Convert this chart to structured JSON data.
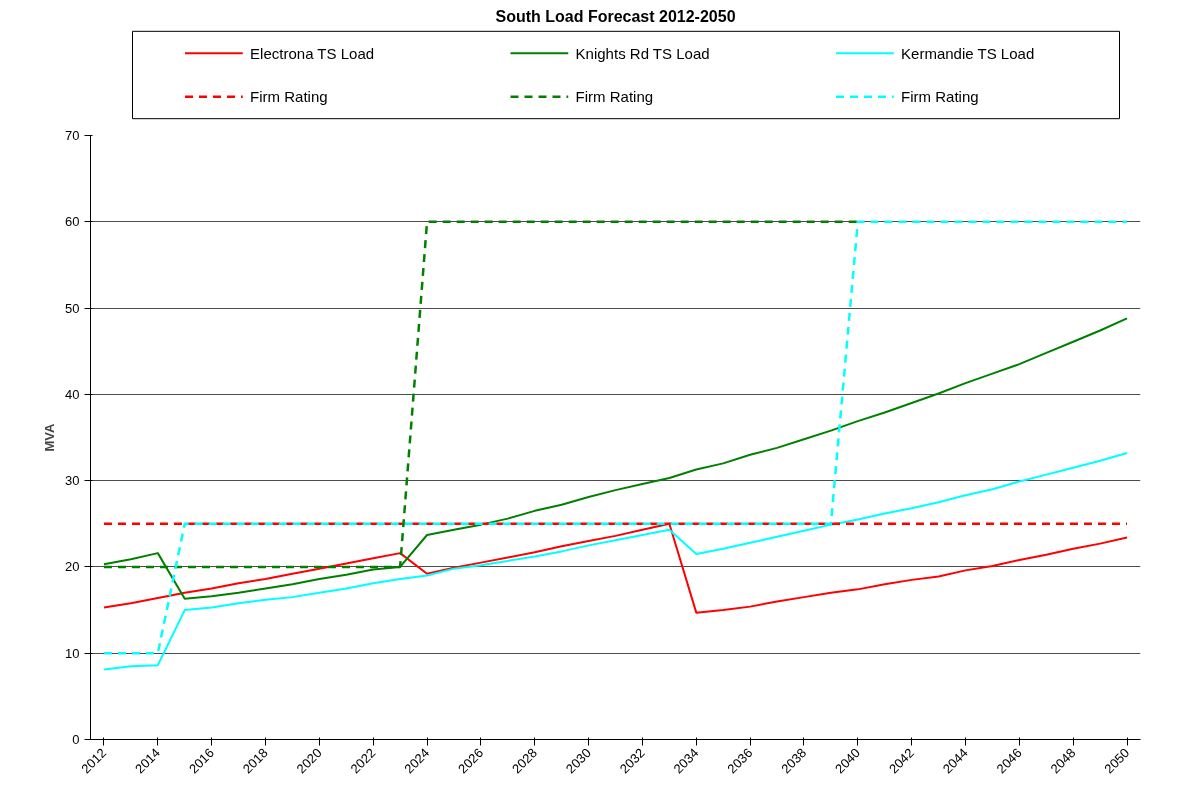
{
  "chart_data": {
    "type": "line",
    "title": "South Load Forecast 2012-2050",
    "ylabel": "MVA",
    "categories": [
      "2012",
      null,
      "2014",
      null,
      "2016",
      null,
      "2018",
      null,
      "2020",
      null,
      "2022",
      null,
      "2024",
      null,
      "2026",
      null,
      "2028",
      null,
      "2030",
      null,
      "2032",
      null,
      "2034",
      null,
      "2036",
      null,
      "2038",
      null,
      "2040",
      null,
      "2042",
      null,
      "2044",
      null,
      "2046",
      null,
      "2048",
      null,
      "2050"
    ],
    "ylim": [
      0,
      70
    ],
    "yticks": [
      0,
      10,
      20,
      30,
      40,
      50,
      60,
      70
    ],
    "grid": "y",
    "legend": "top",
    "marker": "none",
    "series": [
      {
        "name": "Electrona TS Load",
        "color": "#ff0000",
        "line_style": "solid",
        "values": [
          15.3,
          15.8,
          16.4,
          17.0,
          17.5,
          18.1,
          18.6,
          19.2,
          19.8,
          20.4,
          21.0,
          21.6,
          19.2,
          19.9,
          20.5,
          21.1,
          21.7,
          22.4,
          23.0,
          23.6,
          24.3,
          25.0,
          14.7,
          15.0,
          15.4,
          16.0,
          16.5,
          17.0,
          17.4,
          18.0,
          18.5,
          18.9,
          19.6,
          20.1,
          20.8,
          21.4,
          22.1,
          22.7,
          23.4
        ]
      },
      {
        "name": "Knights Rd TS Load",
        "color": "#008000",
        "line_style": "solid",
        "values": [
          20.3,
          20.9,
          21.6,
          16.3,
          16.6,
          17.0,
          17.5,
          18.0,
          18.6,
          19.1,
          19.7,
          20.0,
          23.7,
          24.3,
          24.9,
          25.6,
          26.5,
          27.2,
          28.1,
          28.9,
          29.6,
          30.3,
          31.3,
          32.0,
          33.0,
          33.8,
          34.8,
          35.8,
          36.9,
          37.9,
          39.0,
          40.1,
          41.3,
          42.4,
          43.5,
          44.8,
          46.1,
          47.4,
          48.8
        ]
      },
      {
        "name": "Kermandie TS Load",
        "color": "#00ffff",
        "line_style": "solid",
        "values": [
          8.1,
          8.5,
          8.6,
          15.0,
          15.3,
          15.8,
          16.2,
          16.5,
          17.0,
          17.5,
          18.1,
          18.6,
          19.0,
          19.8,
          20.2,
          20.7,
          21.2,
          21.8,
          22.5,
          23.1,
          23.7,
          24.3,
          21.5,
          22.1,
          22.8,
          23.5,
          24.2,
          24.9,
          25.5,
          26.2,
          26.8,
          27.5,
          28.3,
          29.0,
          29.9,
          30.7,
          31.5,
          32.3,
          33.2
        ]
      },
      {
        "name": "Firm Rating",
        "color": "#ff0000",
        "line_style": "dashed",
        "values": [
          25,
          25,
          25,
          25,
          25,
          25,
          25,
          25,
          25,
          25,
          25,
          25,
          25,
          25,
          25,
          25,
          25,
          25,
          25,
          25,
          25,
          25,
          25,
          25,
          25,
          25,
          25,
          25,
          25,
          25,
          25,
          25,
          25,
          25,
          25,
          25,
          25,
          25,
          25
        ]
      },
      {
        "name": "Firm Rating",
        "color": "#008000",
        "line_style": "dashed",
        "values": [
          20,
          20,
          20,
          20,
          20,
          20,
          20,
          20,
          20,
          20,
          20,
          20,
          60,
          60,
          60,
          60,
          60,
          60,
          60,
          60,
          60,
          60,
          60,
          60,
          60,
          60,
          60,
          60,
          60,
          null,
          null,
          null,
          null,
          null,
          null,
          null,
          null,
          null,
          null
        ]
      },
      {
        "name": "Firm Rating",
        "color": "#00ffff",
        "line_style": "dashed",
        "values": [
          10,
          10,
          10,
          25,
          25,
          25,
          25,
          25,
          25,
          25,
          25,
          25,
          25,
          25,
          25,
          25,
          25,
          25,
          25,
          25,
          25,
          25,
          25,
          25,
          25,
          25,
          25,
          25,
          60,
          60,
          60,
          60,
          60,
          60,
          60,
          60,
          60,
          60,
          60
        ]
      }
    ]
  }
}
